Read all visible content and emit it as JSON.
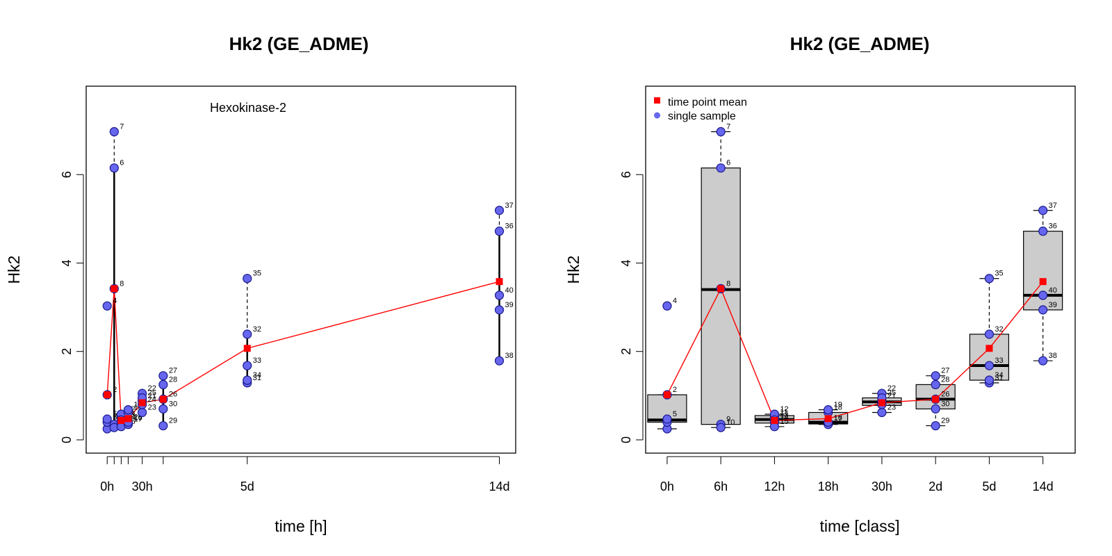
{
  "chart_data": [
    {
      "type": "scatter",
      "title": "Hk2 (GE_ADME)",
      "xlabel": "time [h]",
      "ylabel": "Hk2",
      "annotation": "Hexokinase-2",
      "xlim": [
        -18,
        350
      ],
      "ylim": [
        -0.3,
        8.0
      ],
      "x_ticks": [
        0,
        6,
        12,
        18,
        30,
        48,
        120,
        336
      ],
      "x_tick_labels": [
        {
          "x": 0,
          "label": "0h"
        },
        {
          "x": 30,
          "label": "30h"
        },
        {
          "x": 120,
          "label": "5d"
        },
        {
          "x": 336,
          "label": "14d"
        }
      ],
      "y_ticks": [
        0,
        2,
        4,
        6
      ],
      "groups": [
        {
          "x": 0,
          "min": 0.25,
          "max": 1.02,
          "whisker_max": 0.47,
          "dashed_top": false
        },
        {
          "x": 6,
          "min": 0.28,
          "max": 6.97,
          "whisker_max": 6.15,
          "dashed_top": true
        },
        {
          "x": 12,
          "min": 0.3,
          "max": 0.58,
          "whisker_max": 0.58,
          "dashed_top": false
        },
        {
          "x": 18,
          "min": 0.35,
          "max": 0.68,
          "whisker_max": 0.68,
          "dashed_top": false
        },
        {
          "x": 30,
          "min": 0.62,
          "max": 1.05,
          "whisker_max": 1.05,
          "dashed_top": false
        },
        {
          "x": 48,
          "min": 0.32,
          "max": 1.45,
          "whisker_max": 1.45,
          "dashed_top": true
        },
        {
          "x": 120,
          "min": 1.29,
          "max": 3.65,
          "whisker_max": 2.39,
          "dashed_top": true
        },
        {
          "x": 336,
          "min": 1.79,
          "max": 5.19,
          "whisker_max": 4.72,
          "dashed_top": true
        }
      ],
      "series": [
        {
          "name": "time point mean",
          "x": [
            0,
            6,
            12,
            18,
            30,
            48,
            120,
            336
          ],
          "values": [
            1.02,
            3.42,
            0.44,
            0.48,
            0.84,
            0.92,
            2.07,
            3.58
          ]
        },
        {
          "name": "single sample",
          "points": [
            {
              "id": "1",
              "x": 0,
              "y": 0.25
            },
            {
              "id": "2",
              "x": 0,
              "y": 1.02
            },
            {
              "id": "3",
              "x": 0,
              "y": 0.4
            },
            {
              "id": "4",
              "x": 0,
              "y": 3.03
            },
            {
              "id": "5",
              "x": 0,
              "y": 0.47
            },
            {
              "id": "6",
              "x": 6,
              "y": 6.15
            },
            {
              "id": "7",
              "x": 6,
              "y": 6.97
            },
            {
              "id": "8",
              "x": 6,
              "y": 3.42
            },
            {
              "id": "9",
              "x": 6,
              "y": 0.35
            },
            {
              "id": "10",
              "x": 6,
              "y": 0.28
            },
            {
              "id": "11",
              "x": 12,
              "y": 0.52
            },
            {
              "id": "12",
              "x": 12,
              "y": 0.58
            },
            {
              "id": "13",
              "x": 12,
              "y": 0.45
            },
            {
              "id": "14",
              "x": 12,
              "y": 0.4
            },
            {
              "id": "15",
              "x": 12,
              "y": 0.3
            },
            {
              "id": "16",
              "x": 18,
              "y": 0.38
            },
            {
              "id": "17",
              "x": 18,
              "y": 0.35
            },
            {
              "id": "18",
              "x": 18,
              "y": 0.62
            },
            {
              "id": "19",
              "x": 18,
              "y": 0.68
            },
            {
              "id": "20",
              "x": 18,
              "y": 0.4
            },
            {
              "id": "21",
              "x": 30,
              "y": 0.88
            },
            {
              "id": "22",
              "x": 30,
              "y": 1.05
            },
            {
              "id": "23",
              "x": 30,
              "y": 0.62
            },
            {
              "id": "24",
              "x": 30,
              "y": 0.8
            },
            {
              "id": "25",
              "x": 30,
              "y": 0.95
            },
            {
              "id": "26",
              "x": 48,
              "y": 0.92
            },
            {
              "id": "27",
              "x": 48,
              "y": 1.45
            },
            {
              "id": "28",
              "x": 48,
              "y": 1.25
            },
            {
              "id": "29",
              "x": 48,
              "y": 0.32
            },
            {
              "id": "30",
              "x": 48,
              "y": 0.7
            },
            {
              "id": "31",
              "x": 120,
              "y": 1.29
            },
            {
              "id": "32",
              "x": 120,
              "y": 2.39
            },
            {
              "id": "33",
              "x": 120,
              "y": 1.68
            },
            {
              "id": "34",
              "x": 120,
              "y": 1.35
            },
            {
              "id": "35",
              "x": 120,
              "y": 3.65
            },
            {
              "id": "36",
              "x": 336,
              "y": 4.72
            },
            {
              "id": "37",
              "x": 336,
              "y": 5.19
            },
            {
              "id": "38",
              "x": 336,
              "y": 1.79
            },
            {
              "id": "39",
              "x": 336,
              "y": 2.94
            },
            {
              "id": "40",
              "x": 336,
              "y": 3.27
            }
          ]
        }
      ],
      "grid": false,
      "colors": {
        "mean": "#ff0000",
        "sample_fill": "#6666ee",
        "sample_edge": "#1a1a8c"
      }
    },
    {
      "type": "box",
      "title": "Hk2 (GE_ADME)",
      "xlabel": "time [class]",
      "ylabel": "Hk2",
      "xlim": [
        0.6,
        8.6
      ],
      "ylim": [
        -0.3,
        8.0
      ],
      "categories": [
        "0h",
        "6h",
        "12h",
        "18h",
        "30h",
        "2d",
        "5d",
        "14d"
      ],
      "y_ticks": [
        0,
        2,
        4,
        6
      ],
      "legend": {
        "position": "top-left",
        "entries": [
          {
            "label": "time point mean",
            "marker": "square",
            "color": "#ff0000"
          },
          {
            "label": "single sample",
            "marker": "circle",
            "color": "#6666ee"
          }
        ]
      },
      "boxes": [
        {
          "category": "0h",
          "q1": 0.4,
          "median": 0.45,
          "q3": 1.02,
          "whisker_low": 0.25,
          "whisker_high": 1.02
        },
        {
          "category": "6h",
          "q1": 0.35,
          "median": 3.4,
          "q3": 6.15,
          "whisker_low": 0.28,
          "whisker_high": 6.97
        },
        {
          "category": "12h",
          "q1": 0.38,
          "median": 0.46,
          "q3": 0.55,
          "whisker_low": 0.3,
          "whisker_high": 0.58
        },
        {
          "category": "18h",
          "q1": 0.36,
          "median": 0.4,
          "q3": 0.62,
          "whisker_low": 0.35,
          "whisker_high": 0.68
        },
        {
          "category": "30h",
          "q1": 0.78,
          "median": 0.86,
          "q3": 0.95,
          "whisker_low": 0.62,
          "whisker_high": 1.05
        },
        {
          "category": "2d",
          "q1": 0.7,
          "median": 0.92,
          "q3": 1.25,
          "whisker_low": 0.32,
          "whisker_high": 1.45
        },
        {
          "category": "5d",
          "q1": 1.35,
          "median": 1.68,
          "q3": 2.39,
          "whisker_low": 1.29,
          "whisker_high": 3.65
        },
        {
          "category": "14d",
          "q1": 2.94,
          "median": 3.27,
          "q3": 4.72,
          "whisker_low": 1.79,
          "whisker_high": 5.19
        }
      ],
      "outliers": [
        {
          "category": "0h",
          "id": "4",
          "y": 3.03
        }
      ],
      "series": [
        {
          "name": "time point mean",
          "values": [
            1.02,
            3.42,
            0.44,
            0.48,
            0.84,
            0.92,
            2.07,
            3.58
          ]
        }
      ],
      "sample_labels_shown": [
        {
          "category": "0h",
          "id": "2",
          "y": 1.02
        },
        {
          "category": "0h",
          "id": "4",
          "y": 3.03
        },
        {
          "category": "0h",
          "id": "5",
          "y": 0.47
        },
        {
          "category": "6h",
          "id": "6",
          "y": 6.15
        },
        {
          "category": "6h",
          "id": "7",
          "y": 6.97
        },
        {
          "category": "6h",
          "id": "8",
          "y": 3.42
        },
        {
          "category": "6h",
          "id": "9",
          "y": 0.35
        },
        {
          "category": "6h",
          "id": "10",
          "y": 0.28
        },
        {
          "category": "12h",
          "id": "11",
          "y": 0.52
        },
        {
          "category": "12h",
          "id": "12",
          "y": 0.58
        },
        {
          "category": "12h",
          "id": "13",
          "y": 0.45
        },
        {
          "category": "12h",
          "id": "14",
          "y": 0.4
        },
        {
          "category": "12h",
          "id": "15",
          "y": 0.3
        },
        {
          "category": "18h",
          "id": "16",
          "y": 0.38
        },
        {
          "category": "18h",
          "id": "17",
          "y": 0.35
        },
        {
          "category": "18h",
          "id": "18",
          "y": 0.62
        },
        {
          "category": "18h",
          "id": "19",
          "y": 0.68
        },
        {
          "category": "30h",
          "id": "21",
          "y": 0.88
        },
        {
          "category": "30h",
          "id": "22",
          "y": 1.05
        },
        {
          "category": "30h",
          "id": "23",
          "y": 0.62
        },
        {
          "category": "30h",
          "id": "25",
          "y": 0.95
        },
        {
          "category": "2d",
          "id": "26",
          "y": 0.92
        },
        {
          "category": "2d",
          "id": "27",
          "y": 1.45
        },
        {
          "category": "2d",
          "id": "28",
          "y": 1.25
        },
        {
          "category": "2d",
          "id": "29",
          "y": 0.32
        },
        {
          "category": "2d",
          "id": "30",
          "y": 0.7
        },
        {
          "category": "5d",
          "id": "31",
          "y": 1.29
        },
        {
          "category": "5d",
          "id": "32",
          "y": 2.39
        },
        {
          "category": "5d",
          "id": "33",
          "y": 1.68
        },
        {
          "category": "5d",
          "id": "34",
          "y": 1.35
        },
        {
          "category": "5d",
          "id": "35",
          "y": 3.65
        },
        {
          "category": "14d",
          "id": "36",
          "y": 4.72
        },
        {
          "category": "14d",
          "id": "37",
          "y": 5.19
        },
        {
          "category": "14d",
          "id": "38",
          "y": 1.79
        },
        {
          "category": "14d",
          "id": "39",
          "y": 2.94
        },
        {
          "category": "14d",
          "id": "40",
          "y": 3.27
        }
      ],
      "box_fill": "#cccccc",
      "grid": false
    }
  ]
}
